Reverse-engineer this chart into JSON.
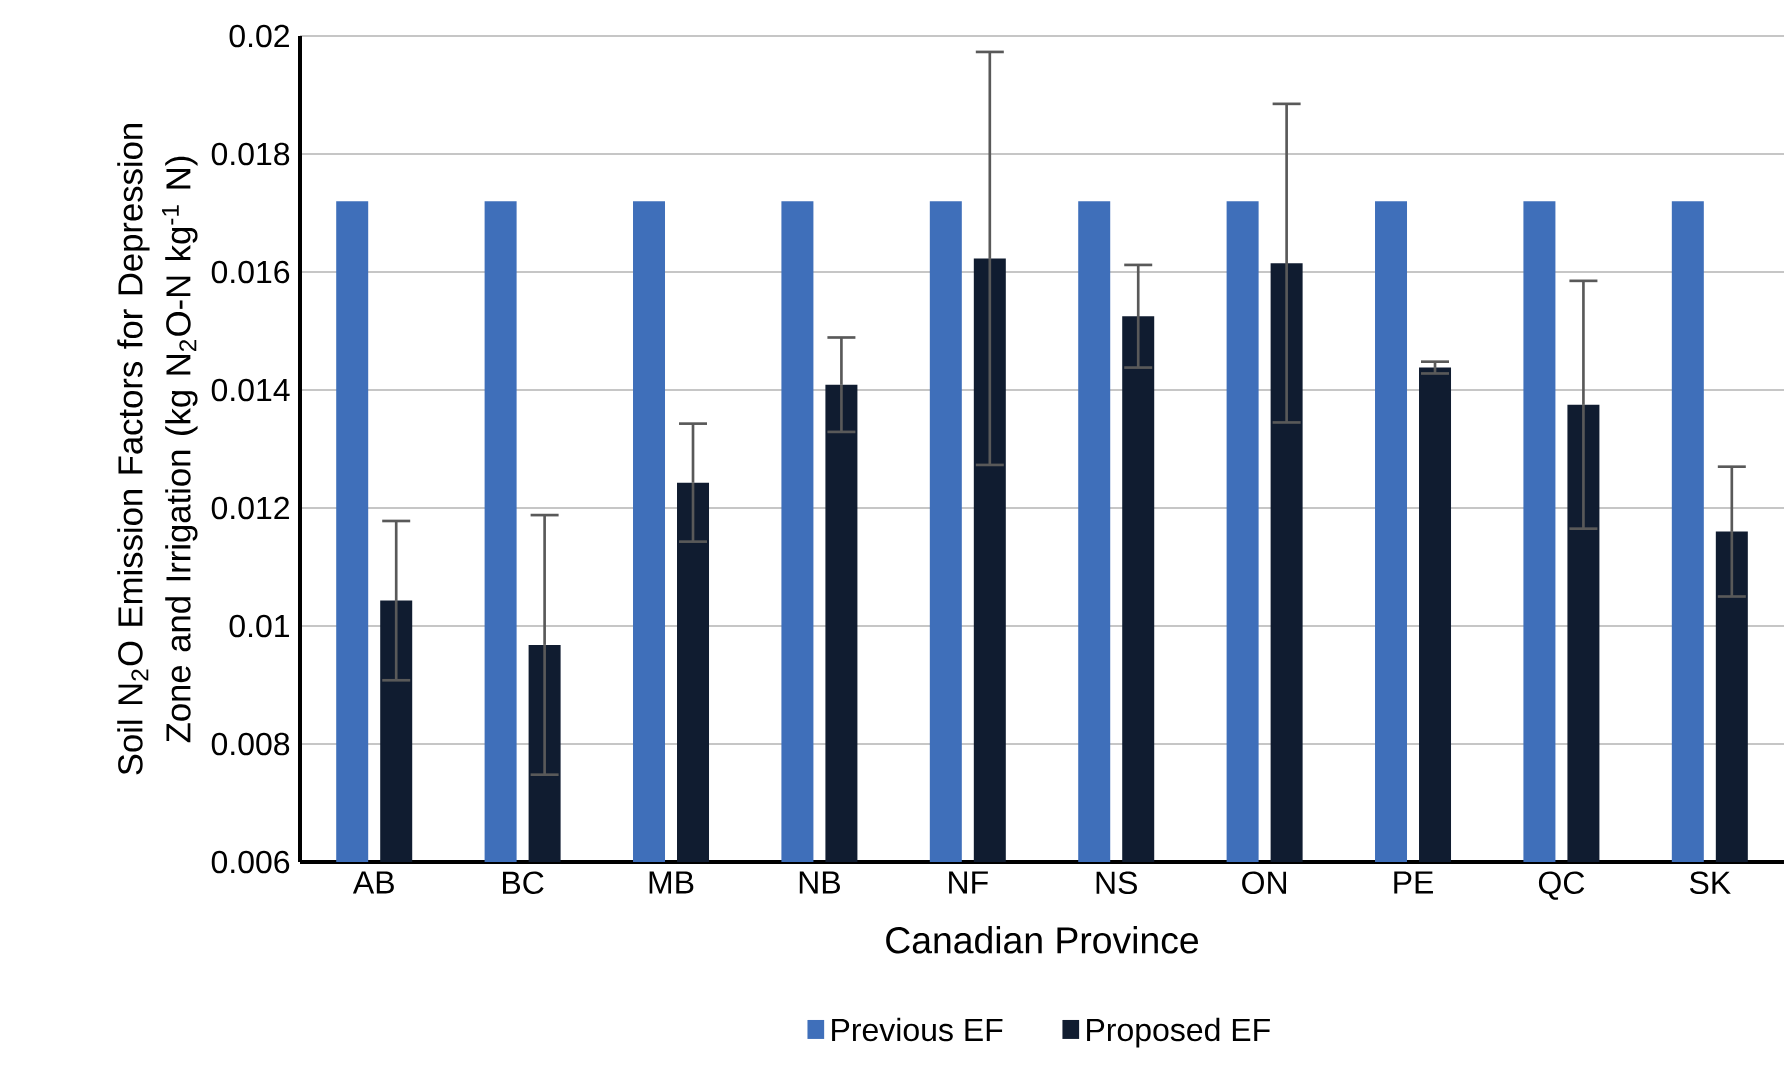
{
  "chart_data": {
    "type": "bar",
    "xlabel": "Canadian Province",
    "ylabel": "Soil N$_{2}$O Emission Factors  for Depression Zone and Irrigation (kg N$_{2}$O-N kg$^{-1}$ N)",
    "categories": [
      "AB",
      "BC",
      "MB",
      "NB",
      "NF",
      "NS",
      "ON",
      "PE",
      "QC",
      "SK"
    ],
    "series": [
      {
        "name": "Previous EF",
        "color": "#3f6fba",
        "values": [
          0.0172,
          0.0172,
          0.0172,
          0.0172,
          0.0172,
          0.0172,
          0.0172,
          0.0172,
          0.0172,
          0.0172
        ]
      },
      {
        "name": "Proposed EF",
        "color": "#101c30",
        "values": [
          0.01043,
          0.00968,
          0.01243,
          0.01409,
          0.01623,
          0.01525,
          0.01615,
          0.01438,
          0.01375,
          0.0116
        ],
        "errors": [
          0.00135,
          0.0022,
          0.001,
          0.0008,
          0.0035,
          0.00087,
          0.0027,
          0.0001,
          0.0021,
          0.0011
        ]
      }
    ],
    "ylim": [
      0.006,
      0.02
    ],
    "yticks": [
      0.006,
      0.008,
      0.01,
      0.012,
      0.014,
      0.016,
      0.018,
      0.02
    ],
    "grid": "y",
    "legend": "bottom"
  }
}
